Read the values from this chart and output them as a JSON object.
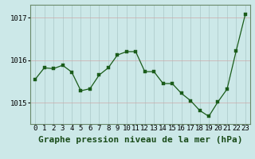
{
  "x": [
    0,
    1,
    2,
    3,
    4,
    5,
    6,
    7,
    8,
    9,
    10,
    11,
    12,
    13,
    14,
    15,
    16,
    17,
    18,
    19,
    20,
    21,
    22,
    23
  ],
  "y": [
    1015.55,
    1015.82,
    1015.8,
    1015.88,
    1015.72,
    1015.28,
    1015.33,
    1015.65,
    1015.82,
    1016.12,
    1016.2,
    1016.2,
    1015.73,
    1015.73,
    1015.45,
    1015.45,
    1015.22,
    1015.05,
    1014.82,
    1014.68,
    1015.02,
    1015.32,
    1016.22,
    1017.08
  ],
  "ylim": [
    1014.5,
    1017.3
  ],
  "yticks": [
    1015,
    1016,
    1017
  ],
  "ytick_labels": [
    "1015",
    "1016",
    "1017"
  ],
  "line_color": "#1a5c1a",
  "marker_color": "#1a5c1a",
  "bg_color": "#cce8e8",
  "plot_bg_color": "#cce8e8",
  "grid_color_v": "#aac8c8",
  "grid_color_h": "#ccaaaa",
  "xlabel": "Graphe pression niveau de la mer (hPa)",
  "xlabel_fontsize": 8,
  "tick_fontsize": 6.5,
  "ytick_fontsize": 6.5,
  "border_color": "#6a8a6a",
  "linewidth": 0.9,
  "markersize": 2.2
}
